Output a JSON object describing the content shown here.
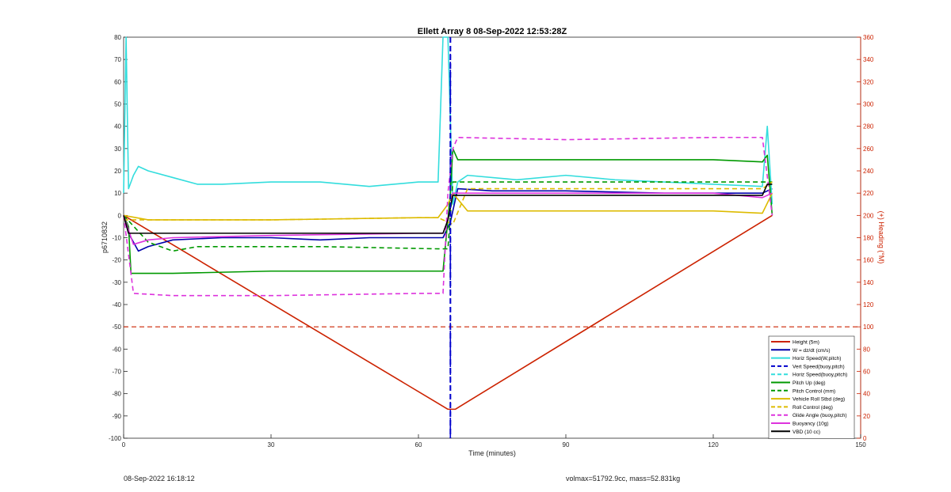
{
  "chart_data": {
    "type": "line",
    "title": "Ellett Array 8 08-Sep-2022 12:53:28Z",
    "xlabel": "Time (minutes)",
    "ylabel": "p6710832",
    "y2label": "(+) Heading (°M)",
    "xlim": [
      0,
      150
    ],
    "ylim": [
      -100,
      80
    ],
    "y2lim": [
      0,
      360
    ],
    "xticks": [
      "0",
      "30",
      "60",
      "90",
      "120",
      "150"
    ],
    "yticks": [
      "80",
      "70",
      "60",
      "50",
      "40",
      "30",
      "20",
      "10",
      "0",
      "-10",
      "-20",
      "-30",
      "-40",
      "-50",
      "-60",
      "-70",
      "-80",
      "-90",
      "-100"
    ],
    "y2ticks": [
      "360",
      "340",
      "320",
      "300",
      "280",
      "260",
      "240",
      "220",
      "200",
      "180",
      "160",
      "140",
      "120",
      "100",
      "80",
      "60",
      "40",
      "20",
      "0"
    ],
    "grid": false,
    "legend_position": "bottom-right",
    "vertical_line_x": 66.5,
    "reference_line_y": -50,
    "series": [
      {
        "name": "Height (5m)",
        "color": "#cc2200",
        "style": "solid",
        "x": [
          0,
          66,
          67.5,
          132
        ],
        "y": [
          0,
          -87,
          -87,
          0
        ]
      },
      {
        "name": "W = dz/dt (cm/s)",
        "color": "#0000aa",
        "style": "solid",
        "x": [
          0,
          1,
          3,
          5,
          10,
          20,
          30,
          40,
          50,
          60,
          65,
          66.5,
          68,
          75,
          90,
          110,
          130,
          132
        ],
        "y": [
          0,
          -8,
          -16,
          -14,
          -11,
          -10,
          -10,
          -11,
          -10,
          -10,
          -10,
          -3,
          12,
          11,
          11,
          10,
          10,
          12
        ]
      },
      {
        "name": "Horiz Speed(W,pitch)",
        "color": "#33dddd",
        "style": "solid",
        "x": [
          0,
          0.5,
          1,
          2,
          3,
          5,
          10,
          15,
          20,
          30,
          40,
          50,
          60,
          64,
          65,
          66,
          67,
          68,
          70,
          80,
          90,
          100,
          110,
          120,
          130,
          131,
          132
        ],
        "y": [
          10,
          80,
          12,
          18,
          22,
          20,
          17,
          14,
          14,
          15,
          15,
          13,
          15,
          15,
          80,
          80,
          5,
          15,
          18,
          16,
          18,
          16,
          15,
          14,
          13,
          40,
          5
        ]
      },
      {
        "name": "Vert Speed(buoy,pitch)",
        "color": "#0000cc",
        "style": "dashed",
        "x": [
          66.5,
          66.5
        ],
        "y": [
          -100,
          80
        ]
      },
      {
        "name": "Horiz Speed(buoy,pitch)",
        "color": "#33dddd",
        "style": "dashed",
        "x": [
          0,
          132
        ],
        "y": [
          0,
          0
        ]
      },
      {
        "name": "Pitch Up (deg)",
        "color": "#009900",
        "style": "solid",
        "x": [
          0,
          1,
          1.5,
          10,
          30,
          60,
          65,
          66.5,
          67,
          68,
          90,
          120,
          130,
          131,
          132
        ],
        "y": [
          0,
          -5,
          -26,
          -26,
          -25,
          -25,
          -25,
          10,
          30,
          25,
          25,
          25,
          24,
          27,
          0
        ]
      },
      {
        "name": "Pitch Control (mm)",
        "color": "#009900",
        "style": "dashed",
        "x": [
          0,
          5,
          10,
          15,
          40,
          64,
          66,
          67,
          80,
          100,
          130,
          132
        ],
        "y": [
          0,
          -12,
          -16,
          -14,
          -14,
          -15,
          -15,
          15,
          15,
          15,
          15,
          15
        ]
      },
      {
        "name": "Vehicle Roll Stbd (deg)",
        "color": "#ddbb00",
        "style": "solid",
        "x": [
          0,
          5,
          10,
          30,
          60,
          64,
          66,
          67,
          70,
          90,
          110,
          120,
          130,
          132
        ],
        "y": [
          0,
          -2,
          -2,
          -2,
          -1,
          -1,
          5,
          10,
          2,
          2,
          2,
          2,
          1,
          10
        ]
      },
      {
        "name": "Roll Control (deg)",
        "color": "#ddbb00",
        "style": "dashed",
        "x": [
          0,
          5,
          10,
          30,
          60,
          64,
          66,
          67,
          70,
          90,
          110,
          120,
          130,
          132
        ],
        "y": [
          -2,
          -2,
          -2,
          -2,
          -1,
          -1,
          -3,
          -4,
          12,
          12,
          12,
          12,
          12,
          15
        ]
      },
      {
        "name": "Glide Angle (buoy,pitch)",
        "color": "#dd33dd",
        "style": "dashed",
        "x": [
          0,
          2,
          10,
          30,
          60,
          65,
          66,
          67,
          68,
          90,
          120,
          130,
          132
        ],
        "y": [
          0,
          -35,
          -36,
          -36,
          -35,
          -35,
          10,
          30,
          35,
          34,
          35,
          35,
          0
        ]
      },
      {
        "name": "Buoyancy (10g)",
        "color": "#dd33dd",
        "style": "solid",
        "x": [
          0,
          2,
          5,
          10,
          30,
          60,
          65,
          66,
          67,
          68,
          90,
          120,
          130,
          132
        ],
        "y": [
          0,
          -13,
          -11,
          -10,
          -9,
          -8,
          -8,
          -2,
          10,
          10,
          10,
          10,
          8,
          10
        ]
      },
      {
        "name": "VBD (10 cc)",
        "color": "#000000",
        "style": "solid",
        "x": [
          0,
          1,
          2,
          10,
          30,
          60,
          65,
          66,
          67,
          90,
          120,
          130,
          131,
          132
        ],
        "y": [
          0,
          -8,
          -8,
          -8,
          -8,
          -8,
          -8,
          -2,
          9,
          9,
          9,
          9,
          14,
          14
        ]
      }
    ]
  },
  "footer": {
    "left_text": "08-Sep-2022 16:18:12",
    "right_text": "volmax=51792.9cc, mass=52.831kg"
  },
  "legend_title_color": "#000000"
}
